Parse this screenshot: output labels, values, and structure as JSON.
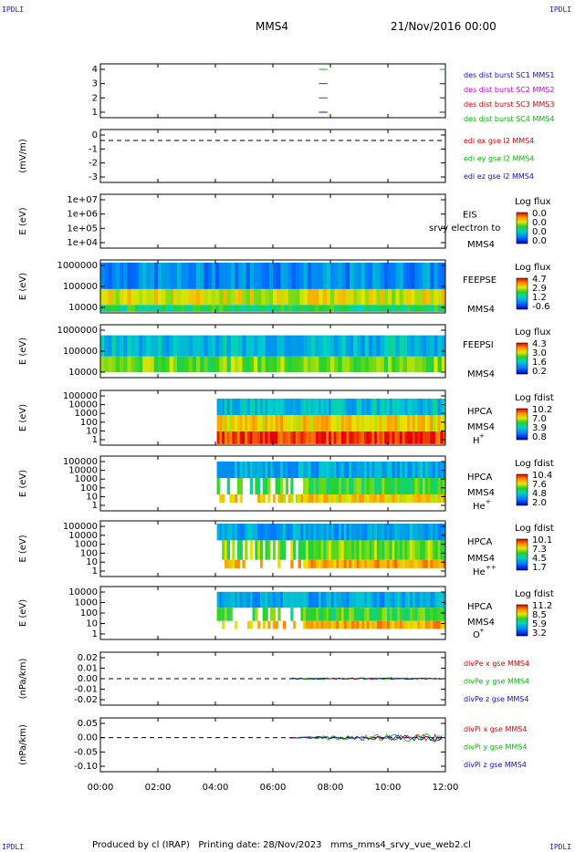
{
  "corner_label": "IPDLI",
  "header": {
    "spacecraft": "MMS4",
    "date": "21/Nov/2016 00:00"
  },
  "footer": "Produced by cl (IRAP)   Printing date: 28/Nov/2023   mms_mms4_srvy_vue_web2.cl",
  "colors": {
    "mms1": "#1010c0",
    "mms2": "#cc00cc",
    "mms3": "#dd0000",
    "mms4": "#00bb00",
    "ex": "#dd0000",
    "ey": "#00bb00",
    "ez": "#1010c0"
  },
  "x_axis": {
    "range_hours": [
      0,
      12
    ],
    "ticks": [
      "00:00",
      "02:00",
      "04:00",
      "06:00",
      "08:00",
      "10:00",
      "12:00"
    ]
  },
  "panels": [
    {
      "id": "burst",
      "yticks": [
        "4",
        "3",
        "2",
        "1"
      ],
      "ylabel": "",
      "legend": [
        {
          "text": "des dist burst SC1 MMS1",
          "color": "#1010c0"
        },
        {
          "text": "des dist burst SC2 MMS2",
          "color": "#cc00cc"
        },
        {
          "text": "des dist burst SC3 MMS3",
          "color": "#dd0000"
        },
        {
          "text": "des dist burst SC4 MMS4",
          "color": "#00bb00"
        }
      ]
    },
    {
      "id": "edi",
      "yticks": [
        "0",
        "-1",
        "-2",
        "-3"
      ],
      "ylabel": "(mV/m)",
      "legend": [
        {
          "text": "edi ex gse l2 MMS4",
          "color": "#dd0000"
        },
        {
          "text": "edi ey gse l2 MMS4",
          "color": "#00bb00"
        },
        {
          "text": "edi ez gse l2 MMS4",
          "color": "#1010c0"
        }
      ]
    },
    {
      "id": "eis",
      "yticks": [
        "1e+07",
        "1e+06",
        "1e+05",
        "1e+04"
      ],
      "ylabel": "E (eV)",
      "labels": [
        "EIS",
        "MMS4"
      ],
      "overlay": "srvy electron to",
      "cbar_title": "Log flux",
      "cbar_ticks": [
        "0.0",
        "0.0",
        "0.0",
        "0.0"
      ]
    },
    {
      "id": "feepse",
      "yticks": [
        "1000000",
        "100000",
        "10000"
      ],
      "ylabel": "E (eV)",
      "labels": [
        "FEEPSE",
        "MMS4"
      ],
      "cbar_title": "Log flux",
      "cbar_ticks": [
        "4.7",
        "2.9",
        "1.2",
        "-0.6"
      ]
    },
    {
      "id": "feepsi",
      "yticks": [
        "1000000",
        "100000",
        "10000"
      ],
      "ylabel": "E (eV)",
      "labels": [
        "FEEPSI",
        "MMS4"
      ],
      "cbar_title": "Log flux",
      "cbar_ticks": [
        "4.3",
        "3.0",
        "1.6",
        "0.2"
      ]
    },
    {
      "id": "hpca_h",
      "yticks": [
        "100000",
        "10000",
        "1000",
        "100",
        "10",
        "1"
      ],
      "ylabel": "E (eV)",
      "labels": [
        "HPCA",
        "MMS4"
      ],
      "species": "H",
      "species_sup": "+",
      "cbar_title": "Log fdist",
      "cbar_ticks": [
        "10.2",
        "7.0",
        "3.9",
        "0.8"
      ]
    },
    {
      "id": "hpca_he",
      "yticks": [
        "100000",
        "10000",
        "1000",
        "100",
        "10",
        "1"
      ],
      "ylabel": "E (eV)",
      "labels": [
        "HPCA",
        "MMS4"
      ],
      "species": "He",
      "species_sup": "+",
      "cbar_title": "Log fdist",
      "cbar_ticks": [
        "10.4",
        "7.6",
        "4.8",
        "2.0"
      ]
    },
    {
      "id": "hpca_he2",
      "yticks": [
        "100000",
        "10000",
        "1000",
        "100",
        "10",
        "1"
      ],
      "ylabel": "E (eV)",
      "labels": [
        "HPCA",
        "MMS4"
      ],
      "species": "He",
      "species_sup": "++",
      "cbar_title": "Log fdist",
      "cbar_ticks": [
        "10.1",
        "7.3",
        "4.5",
        "1.7"
      ]
    },
    {
      "id": "hpca_o",
      "yticks": [
        "10000",
        "1000",
        "100",
        "10",
        "1"
      ],
      "ylabel": "E (eV)",
      "labels": [
        "HPCA",
        "MMS4"
      ],
      "species": "O",
      "species_sup": "+",
      "cbar_title": "Log fdist",
      "cbar_ticks": [
        "11.2",
        "8.5",
        "5.9",
        "3.2"
      ]
    },
    {
      "id": "divpe",
      "yticks": [
        "0.02",
        "0.01",
        "0.00",
        "-0.01",
        "-0.02"
      ],
      "ylabel": "(nPa/km)",
      "legend": [
        {
          "text": "divPe x gse MMS4",
          "color": "#dd0000"
        },
        {
          "text": "divPe y gse MMS4",
          "color": "#00bb00"
        },
        {
          "text": "divPe z gse MMS4",
          "color": "#1010c0"
        }
      ]
    },
    {
      "id": "divpi",
      "yticks": [
        "0.05",
        "0.00",
        "-0.05",
        "-0.10"
      ],
      "ylabel": "(nPa/km)",
      "legend": [
        {
          "text": "divPi x gse MMS4",
          "color": "#dd0000"
        },
        {
          "text": "divPi y gse MMS4",
          "color": "#00bb00"
        },
        {
          "text": "divPi z gse MMS4",
          "color": "#1010c0"
        }
      ]
    }
  ],
  "chart_data": {
    "type": "heatmap",
    "title": "MMS4 21/Nov/2016 00:00",
    "x_range": [
      "00:00",
      "12:00"
    ],
    "series": [
      {
        "name": "des dist burst SC1 MMS1",
        "y": 1,
        "intervals_hours": [
          [
            7.6,
            7.9
          ],
          [
            11.8,
            12.0
          ]
        ]
      },
      {
        "name": "des dist burst SC2 MMS2",
        "y": 2,
        "intervals_hours": [
          [
            7.6,
            7.9
          ],
          [
            11.8,
            12.0
          ]
        ]
      },
      {
        "name": "des dist burst SC3 MMS3",
        "y": 3,
        "intervals_hours": [
          [
            7.6,
            7.9
          ],
          [
            11.8,
            12.0
          ]
        ]
      },
      {
        "name": "des dist burst SC4 MMS4",
        "y": 4,
        "intervals_hours": [
          [
            7.6,
            7.9
          ],
          [
            11.8,
            12.0
          ]
        ]
      }
    ]
  }
}
